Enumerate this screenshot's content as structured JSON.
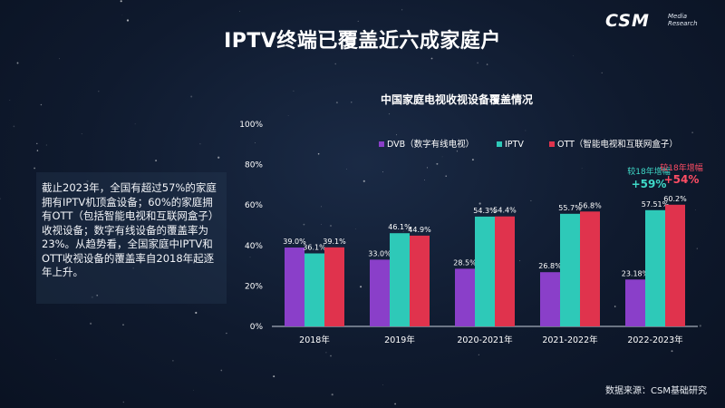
{
  "page": {
    "title": "IPTV终端已覆盖近六成家庭户",
    "logo_main": "CSM",
    "logo_sub_1": "Media",
    "logo_sub_2": "Research",
    "note": "截止2023年，全国有超过57%的家庭拥有IPTV机顶盒设备；60%的家庭拥有OTT（包括智能电视和互联网盒子）收视设备；数字有线设备的覆盖率为23%。从趋势看，全国家庭中IPTV和OTT收视设备的覆盖率自2018年起逐年上升。",
    "source": "数据来源：CSM基础研究"
  },
  "colors": {
    "dvb": "#8a3fc9",
    "iptv": "#2ec9b8",
    "ott": "#e0334d",
    "text": "#ffffff",
    "growth_iptv": "#3fd9c8",
    "growth_ott": "#ff4d64"
  },
  "chart_data": {
    "type": "bar",
    "title": "中国家庭电视收视设备覆盖情况",
    "categories": [
      "2018年",
      "2019年",
      "2020-2021年",
      "2021-2022年",
      "2022-2023年"
    ],
    "series": [
      {
        "name": "DVB（数字有线电视）",
        "values": [
          39.0,
          33.0,
          28.5,
          26.8,
          23.18
        ],
        "labels": [
          "39.0%",
          "33.0%",
          "28.5%",
          "26.8%",
          "23.18%"
        ]
      },
      {
        "name": "IPTV",
        "values": [
          36.1,
          46.1,
          54.3,
          55.7,
          57.51
        ],
        "labels": [
          "36.1%",
          "46.1%",
          "54.3%",
          "55.7%",
          "57.51%"
        ]
      },
      {
        "name": "OTT（智能电视和互联网盒子）",
        "values": [
          39.1,
          44.9,
          54.4,
          56.8,
          60.2
        ],
        "labels": [
          "39.1%",
          "44.9%",
          "54.4%",
          "56.8%",
          "60.2%"
        ]
      }
    ],
    "ylim": [
      0,
      100
    ],
    "yticks": [
      "0%",
      "20%",
      "40%",
      "60%",
      "80%",
      "100%"
    ],
    "legend_position": "top",
    "annotations": [
      {
        "series": "IPTV",
        "text": "较18年增幅",
        "value": "+59%"
      },
      {
        "series": "OTT（智能电视和互联网盒子）",
        "text": "较18年增幅",
        "value": "+54%"
      }
    ]
  }
}
